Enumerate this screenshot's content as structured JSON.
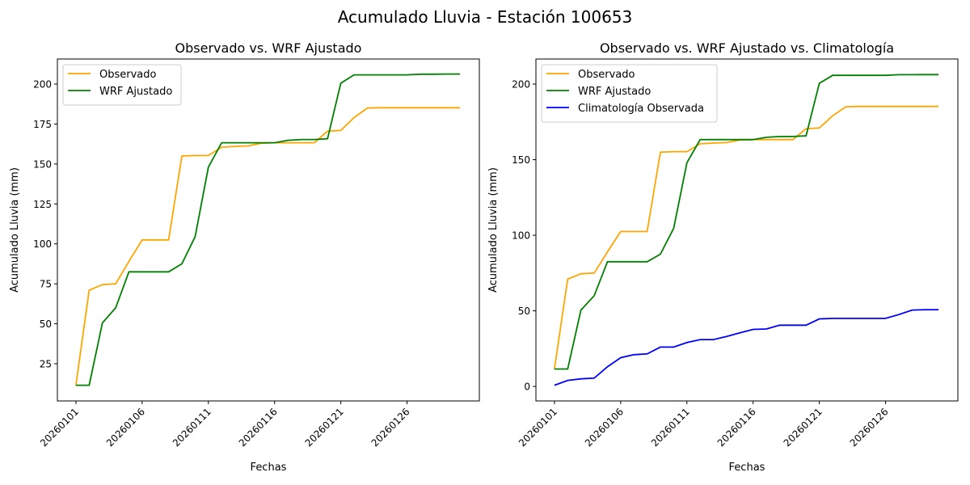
{
  "suptitle": "Acumulado Lluvia - Estación 100653",
  "chart_data": [
    {
      "type": "line",
      "title": "Observado vs. WRF Ajustado",
      "xlabel": "Fechas",
      "ylabel": "Acumulado Lluvia (mm)",
      "x": [
        "20260101",
        "20260102",
        "20260103",
        "20260104",
        "20260105",
        "20260106",
        "20260107",
        "20260108",
        "20260109",
        "20260110",
        "20260111",
        "20260112",
        "20260113",
        "20260114",
        "20260115",
        "20260116",
        "20260117",
        "20260118",
        "20260119",
        "20260120",
        "20260121",
        "20260122",
        "20260123",
        "20260124",
        "20260125",
        "20260126",
        "20260127",
        "20260128",
        "20260129",
        "20260130"
      ],
      "xticks": [
        "20260101",
        "20260106",
        "20260111",
        "20260116",
        "20260121",
        "20260126"
      ],
      "yticks": [
        25,
        50,
        75,
        100,
        125,
        150,
        175,
        200
      ],
      "ylim": [
        1.7,
        215.7
      ],
      "xlim_index": [
        -1.4,
        30.46
      ],
      "legend": "top-left",
      "series": [
        {
          "name": "Observado",
          "color": "#ffa500",
          "values": [
            11.5,
            71,
            74.5,
            75,
            89,
            102.5,
            102.5,
            102.5,
            155,
            155.3,
            155.3,
            160.5,
            161,
            161.3,
            163,
            163.3,
            163.3,
            163.3,
            163.3,
            170.5,
            171,
            179,
            185,
            185.2,
            185.2,
            185.2,
            185.2,
            185.2,
            185.2,
            185.2
          ]
        },
        {
          "name": "WRF Ajustado",
          "color": "#008000",
          "values": [
            11.5,
            11.5,
            50.5,
            60,
            82.5,
            82.5,
            82.5,
            82.5,
            87.5,
            104.5,
            148,
            163.3,
            163.3,
            163.3,
            163.3,
            163.3,
            164.8,
            165.3,
            165.3,
            165.8,
            200.5,
            205.8,
            205.8,
            205.8,
            205.8,
            205.8,
            206.2,
            206.2,
            206.3,
            206.3
          ]
        }
      ]
    },
    {
      "type": "line",
      "title": "Observado vs. WRF Ajustado vs. Climatología",
      "xlabel": "Fechas",
      "ylabel": "Acumulado Lluvia (mm)",
      "x": [
        "20260101",
        "20260102",
        "20260103",
        "20260104",
        "20260105",
        "20260106",
        "20260107",
        "20260108",
        "20260109",
        "20260110",
        "20260111",
        "20260112",
        "20260113",
        "20260114",
        "20260115",
        "20260116",
        "20260117",
        "20260118",
        "20260119",
        "20260120",
        "20260121",
        "20260122",
        "20260123",
        "20260124",
        "20260125",
        "20260126",
        "20260127",
        "20260128",
        "20260129",
        "20260130"
      ],
      "xticks": [
        "20260101",
        "20260106",
        "20260111",
        "20260116",
        "20260121",
        "20260126"
      ],
      "yticks": [
        0,
        50,
        100,
        150,
        200
      ],
      "ylim": [
        -9.6,
        216.6
      ],
      "xlim_index": [
        -1.4,
        30.46
      ],
      "legend": "top-left",
      "series": [
        {
          "name": "Observado",
          "color": "#ffa500",
          "values": [
            11.5,
            71,
            74.5,
            75,
            89,
            102.5,
            102.5,
            102.5,
            155,
            155.3,
            155.3,
            160.5,
            161,
            161.3,
            163,
            163.3,
            163.3,
            163.3,
            163.3,
            170.5,
            171,
            179,
            185,
            185.2,
            185.2,
            185.2,
            185.2,
            185.2,
            185.2,
            185.2
          ]
        },
        {
          "name": "WRF Ajustado",
          "color": "#008000",
          "values": [
            11.5,
            11.5,
            50.5,
            60,
            82.5,
            82.5,
            82.5,
            82.5,
            87.5,
            104.5,
            148,
            163.3,
            163.3,
            163.3,
            163.3,
            163.3,
            164.8,
            165.3,
            165.3,
            165.8,
            200.5,
            205.8,
            205.8,
            205.8,
            205.8,
            205.8,
            206.2,
            206.2,
            206.3,
            206.3
          ]
        },
        {
          "name": "Climatología Observada",
          "color": "#0000ff",
          "values": [
            0.8,
            4,
            5,
            5.5,
            13,
            19,
            21,
            21.5,
            26,
            26,
            29,
            31,
            31,
            33,
            35.5,
            37.7,
            38,
            40.5,
            40.5,
            40.5,
            44.7,
            45,
            45,
            45,
            45,
            45,
            47.5,
            50.5,
            50.8,
            50.8
          ]
        }
      ]
    }
  ]
}
